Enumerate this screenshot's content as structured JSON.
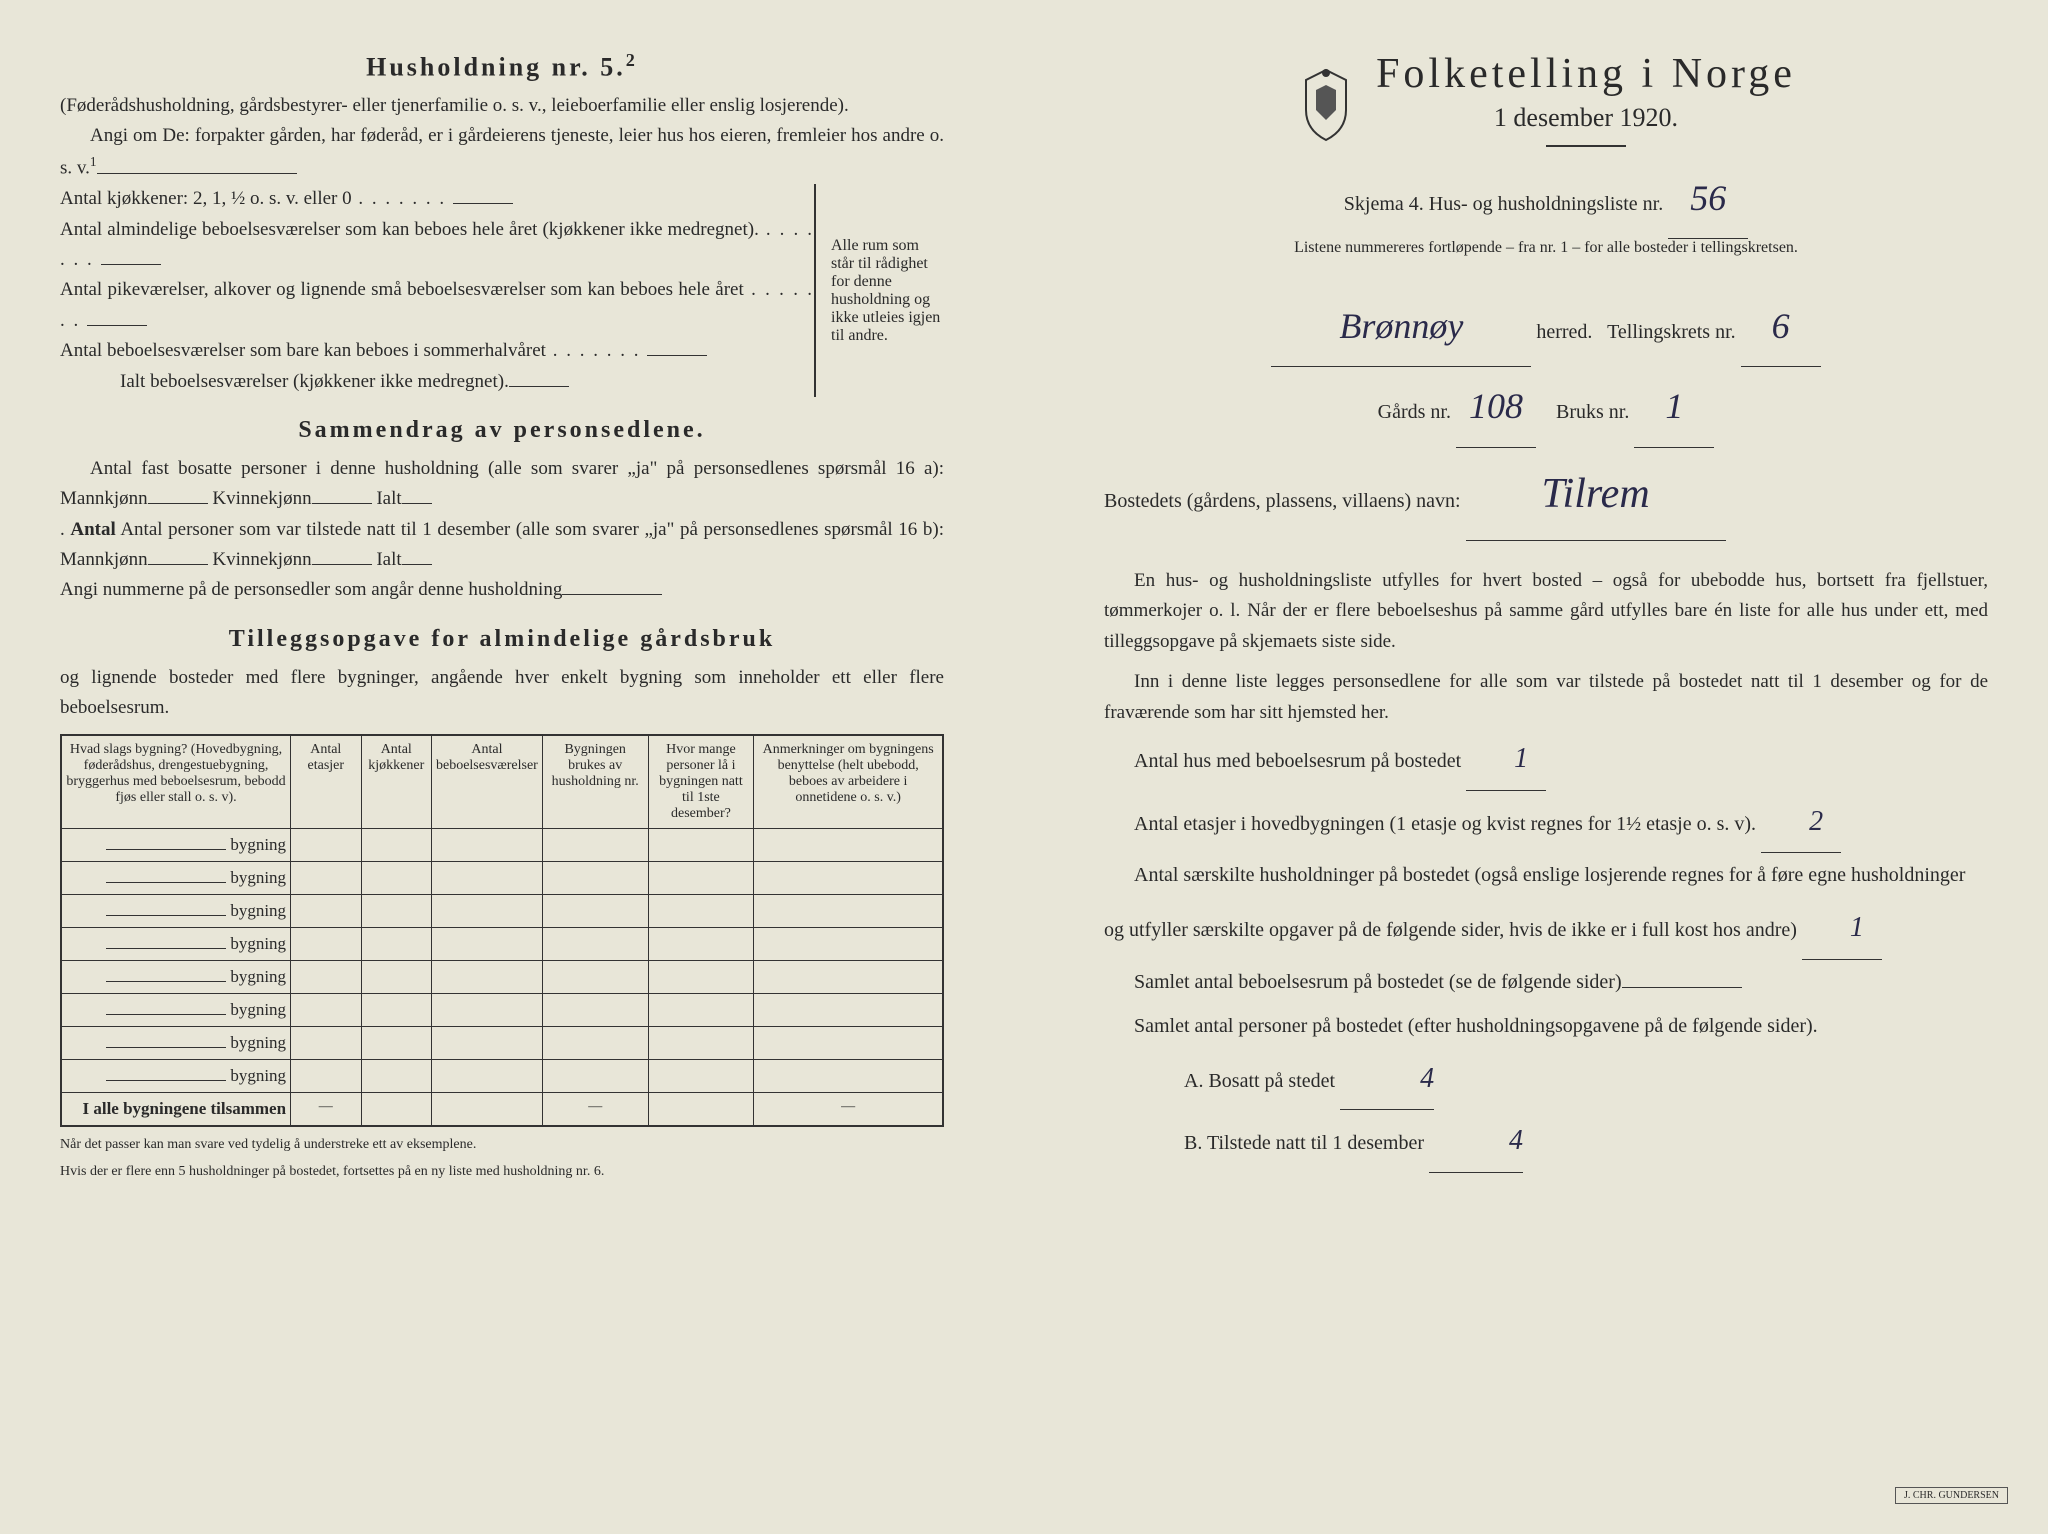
{
  "left": {
    "heading": "Husholdning nr. 5.",
    "heading_sup": "2",
    "intro1": "(Føderådshusholdning, gårdsbestyrer- eller tjenerfamilie o. s. v., leieboerfamilie eller enslig losjerende).",
    "intro2": "Angi om De: forpakter gården, har føderåd, er i gårdeierens tjeneste, leier hus hos eieren, fremleier hos andre o. s. v.",
    "intro2_sup": "1",
    "line_kjokken": "Antal kjøkkener: 2, 1, ½ o. s. v. eller 0",
    "line_alm": "Antal almindelige beboelsesværelser som kan beboes hele året (kjøkkener ikke medregnet).",
    "line_pike": "Antal pikeværelser, alkover og lignende små beboelsesværelser som kan beboes hele året",
    "line_sommer": "Antal beboelsesværelser som bare kan beboes i sommerhalvåret",
    "line_ialt": "Ialt beboelsesværelser (kjøkkener ikke medregnet).",
    "brace_text": "Alle rum som står til rådighet for denne husholdning og ikke utleies igjen til andre.",
    "sammendrag_heading": "Sammendrag av personsedlene.",
    "samm1": "Antal fast bosatte personer i denne husholdning (alle som svarer „ja\" på personsedlenes spørsmål 16 a): Mannkjønn",
    "samm_kvinn": "Kvinnekjønn",
    "samm_ialt": "Ialt",
    "samm2": "Antal personer som var tilstede natt til 1 desember (alle som svarer „ja\" på personsedlenes spørsmål 16 b): Mannkjønn",
    "samm3": "Angi nummerne på de personsedler som angår denne husholdning",
    "tillegg_heading": "Tilleggsopgave for almindelige gårdsbruk",
    "tillegg_intro": "og lignende bosteder med flere bygninger, angående hver enkelt bygning som inneholder ett eller flere beboelsesrum.",
    "table_headers": [
      "Hvad slags bygning?\n(Hovedbygning, føderådshus, drengestuebygning, bryggerhus med beboelsesrum, bebodd fjøs eller stall o. s. v).",
      "Antal etasjer",
      "Antal kjøkkener",
      "Antal beboelsesværelser",
      "Bygningen brukes av husholdning nr.",
      "Hvor mange personer lå i bygningen natt til 1ste desember?",
      "Anmerkninger om bygningens benyttelse (helt ubebodd, beboes av arbeidere i onnetidene o. s. v.)"
    ],
    "table_row_label": "bygning",
    "table_footer": "I alle bygningene tilsammen",
    "foot1": "Når det passer kan man svare ved tydelig å understreke ett av eksemplene.",
    "foot2": "Hvis der er flere enn 5 husholdninger på bostedet, fortsettes på en ny liste med husholdning nr. 6."
  },
  "right": {
    "title": "Folketelling i Norge",
    "date": "1 desember 1920.",
    "skjema": "Skjema 4.  Hus- og husholdningsliste nr.",
    "skjema_nr": "56",
    "listene": "Listene nummereres fortløpende – fra nr. 1 – for alle bosteder i tellingskretsen.",
    "herred_value": "Brønnøy",
    "herred_label": "herred.",
    "tellingskrets": "Tellingskrets nr.",
    "tellingskrets_nr": "6",
    "gards": "Gårds nr.",
    "gards_nr": "108",
    "bruks": "Bruks nr.",
    "bruks_nr": "1",
    "bosted_label": "Bostedets (gårdens, plassens, villaens) navn:",
    "bosted_value": "Tilrem",
    "para1": "En hus- og husholdningsliste utfylles for hvert bosted – også for ubebodde hus, bortsett fra fjellstuer, tømmerkojer o. l.  Når der er flere beboelseshus på samme gård utfylles bare én liste for alle hus under ett, med tilleggsopgave på skjemaets siste side.",
    "para2": "Inn i denne liste legges personsedlene for alle som var tilstede på bostedet natt til 1 desember og for de fraværende som har sitt hjemsted her.",
    "antal_hus": "Antal hus med beboelsesrum på bostedet",
    "antal_hus_val": "1",
    "antal_etasjer": "Antal etasjer i hovedbygningen (1 etasje og kvist regnes for 1½ etasje o. s. v).",
    "antal_etasjer_val": "2",
    "antal_hush": "Antal særskilte husholdninger på bostedet (også enslige losjerende regnes for å føre egne husholdninger og utfyller særskilte opgaver på de følgende sider, hvis de ikke er i full kost hos andre)",
    "antal_hush_val": "1",
    "samlet_rum": "Samlet antal beboelsesrum på bostedet (se de følgende sider)",
    "samlet_pers": "Samlet antal personer på bostedet (efter husholdningsopgavene på de følgende sider).",
    "a_label": "A.  Bosatt på stedet",
    "a_val": "4",
    "b_label": "B.  Tilstede natt til 1 desember",
    "b_val": "4"
  }
}
